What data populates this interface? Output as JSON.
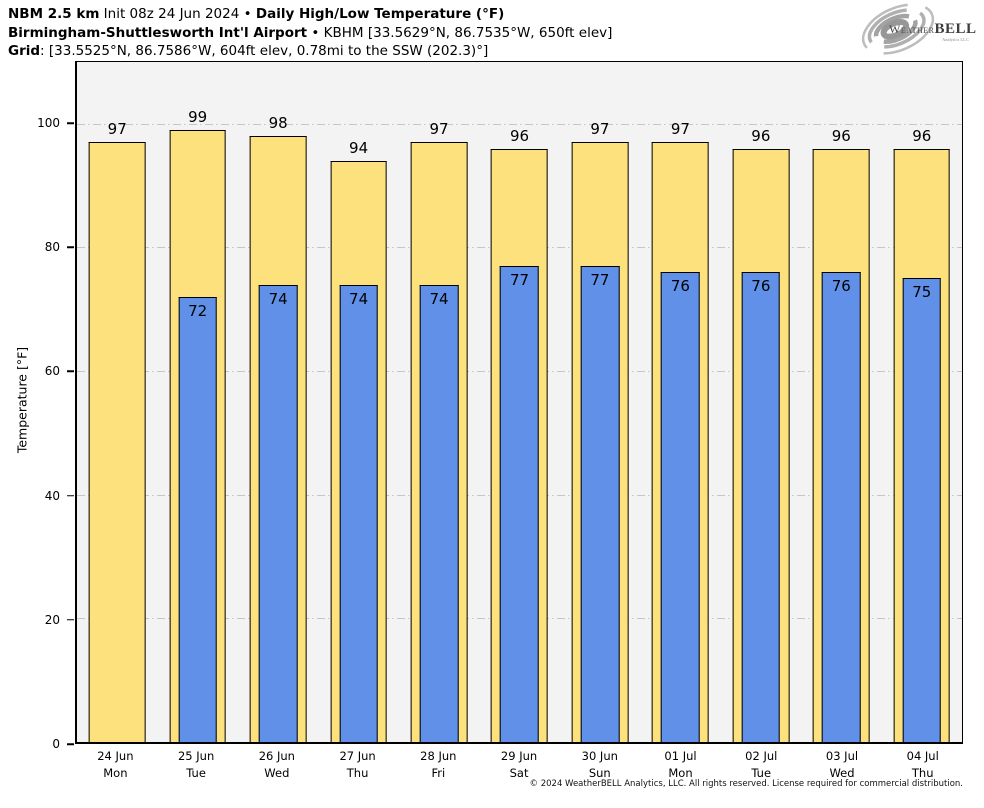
{
  "header": {
    "line1": {
      "model": "NBM 2.5 km",
      "init": " Init 08z 24 Jun 2024 • ",
      "product": "Daily High/Low Temperature (°F)"
    },
    "line2": {
      "station": "Birmingham-Shuttlesworth Int'l Airport",
      "rest": " • KBHM [33.5629°N, 86.7535°W, 650ft elev]"
    },
    "line3": {
      "label": "Grid",
      "rest": ": [33.5525°N, 86.7586°W, 604ft elev, 0.78mi to the SSW (202.3)°]"
    }
  },
  "logo": {
    "name_part1": "Weather",
    "name_part2": "BELL",
    "sub": "Analytics LLC"
  },
  "chart_data": {
    "type": "bar",
    "title": "Daily High/Low Temperature (°F)",
    "ylabel": "Temperature [°F]",
    "ylim": [
      0,
      110
    ],
    "yticks": [
      0,
      20,
      40,
      60,
      80,
      100
    ],
    "grid": "horizontal dash-dot gridlines at yticks above 0",
    "legend": "none",
    "categories": [
      {
        "date": "24 Jun",
        "day": "Mon"
      },
      {
        "date": "25 Jun",
        "day": "Tue"
      },
      {
        "date": "26 Jun",
        "day": "Wed"
      },
      {
        "date": "27 Jun",
        "day": "Thu"
      },
      {
        "date": "28 Jun",
        "day": "Fri"
      },
      {
        "date": "29 Jun",
        "day": "Sat"
      },
      {
        "date": "30 Jun",
        "day": "Sun"
      },
      {
        "date": "01 Jul",
        "day": "Mon"
      },
      {
        "date": "02 Jul",
        "day": "Tue"
      },
      {
        "date": "03 Jul",
        "day": "Wed"
      },
      {
        "date": "04 Jul",
        "day": "Thu"
      }
    ],
    "series": [
      {
        "name": "Daily High",
        "color": "#fde17c",
        "values": [
          97,
          99,
          98,
          94,
          97,
          96,
          97,
          97,
          96,
          96,
          96
        ]
      },
      {
        "name": "Daily Low",
        "color": "#6090e8",
        "values": [
          null,
          72,
          74,
          74,
          74,
          77,
          77,
          76,
          76,
          76,
          75
        ]
      }
    ],
    "colors": {
      "plot_bg": "#f3f3f3",
      "gridline": "#c6c6c6",
      "bar_border": "#000000"
    }
  },
  "footer": "© 2024 WeatherBELL Analytics, LLC. All rights reserved. License required for commercial distribution."
}
